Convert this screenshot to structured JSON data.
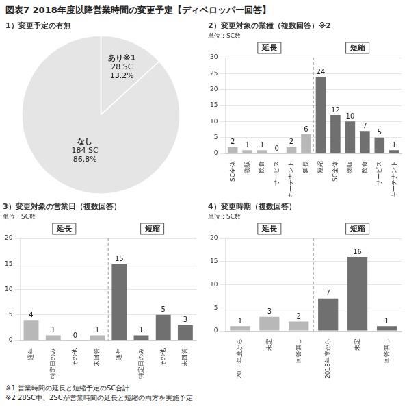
{
  "title": "図表7   2018年度以降営業時間の変更予定【ディベロッパー回答】",
  "annotations": [
    "※1   営業時間の延長と短縮予定のSC合計",
    "※2   28SC中、2SCが営業時間の延長と短縮の両方を実施予定"
  ],
  "chart_data": [
    {
      "type": "pie",
      "title": "1）変更予定の有無",
      "categories": [
        "あり※1",
        "なし"
      ],
      "values": [
        13.2,
        86.8
      ],
      "value_labels": [
        "13.2%",
        "86.8%"
      ],
      "annotations": [
        "28 SC",
        "184 SC"
      ],
      "data_labels": true
    },
    {
      "type": "bar",
      "title": "2）変更対象の業種（複数回答）※2",
      "subtitle": "単位：SC数",
      "categories": [
        "SC全体",
        "物販",
        "飲食",
        "サービス",
        "キーテナント",
        "延長",
        "短縮",
        "SC全体",
        "物販",
        "飲食",
        "サービス",
        "キーテナント"
      ],
      "values": [
        2,
        1,
        1,
        0,
        2,
        6,
        24,
        12,
        10,
        7,
        5,
        1
      ],
      "colors": [
        "#b8b8b8",
        "#b8b8b8",
        "#b8b8b8",
        "#b8b8b8",
        "#b8b8b8",
        "#b8b8b8",
        "#707070",
        "#707070",
        "#707070",
        "#707070",
        "#707070",
        "#707070"
      ],
      "ylim": [
        0,
        30
      ],
      "yticks": [
        0,
        5,
        10,
        15,
        20,
        25,
        30
      ],
      "grid": true,
      "data_labels": true,
      "annotations": [
        "延長",
        "短縮"
      ]
    },
    {
      "type": "bar",
      "title": "3）変更対象の営業日（複数回答）",
      "subtitle": "単位：SC数",
      "categories": [
        "通年",
        "特定日のみ",
        "その他",
        "未回答",
        "通年",
        "特定日のみ",
        "その他",
        "未回答"
      ],
      "values": [
        4,
        1,
        0,
        1,
        15,
        1,
        5,
        3
      ],
      "colors": [
        "#b8b8b8",
        "#b8b8b8",
        "#b8b8b8",
        "#b8b8b8",
        "#707070",
        "#707070",
        "#707070",
        "#707070"
      ],
      "ylim": [
        0,
        20
      ],
      "yticks": [
        0,
        5,
        10,
        15,
        20
      ],
      "grid": true,
      "data_labels": true,
      "annotations": [
        "延長",
        "短縮"
      ]
    },
    {
      "type": "bar",
      "title": "4）変更時期（複数回答）",
      "subtitle": "単位：SC数",
      "categories": [
        "2018年度から",
        "未定",
        "回答無し",
        "2018年度から",
        "未定",
        "回答無し"
      ],
      "values": [
        1,
        3,
        2,
        7,
        16,
        1
      ],
      "colors": [
        "#b8b8b8",
        "#b8b8b8",
        "#b8b8b8",
        "#707070",
        "#707070",
        "#707070"
      ],
      "ylim": [
        0,
        20
      ],
      "yticks": [
        0,
        5,
        10,
        15,
        20
      ],
      "grid": true,
      "data_labels": true,
      "annotations": [
        "延長",
        "短縮"
      ]
    }
  ]
}
